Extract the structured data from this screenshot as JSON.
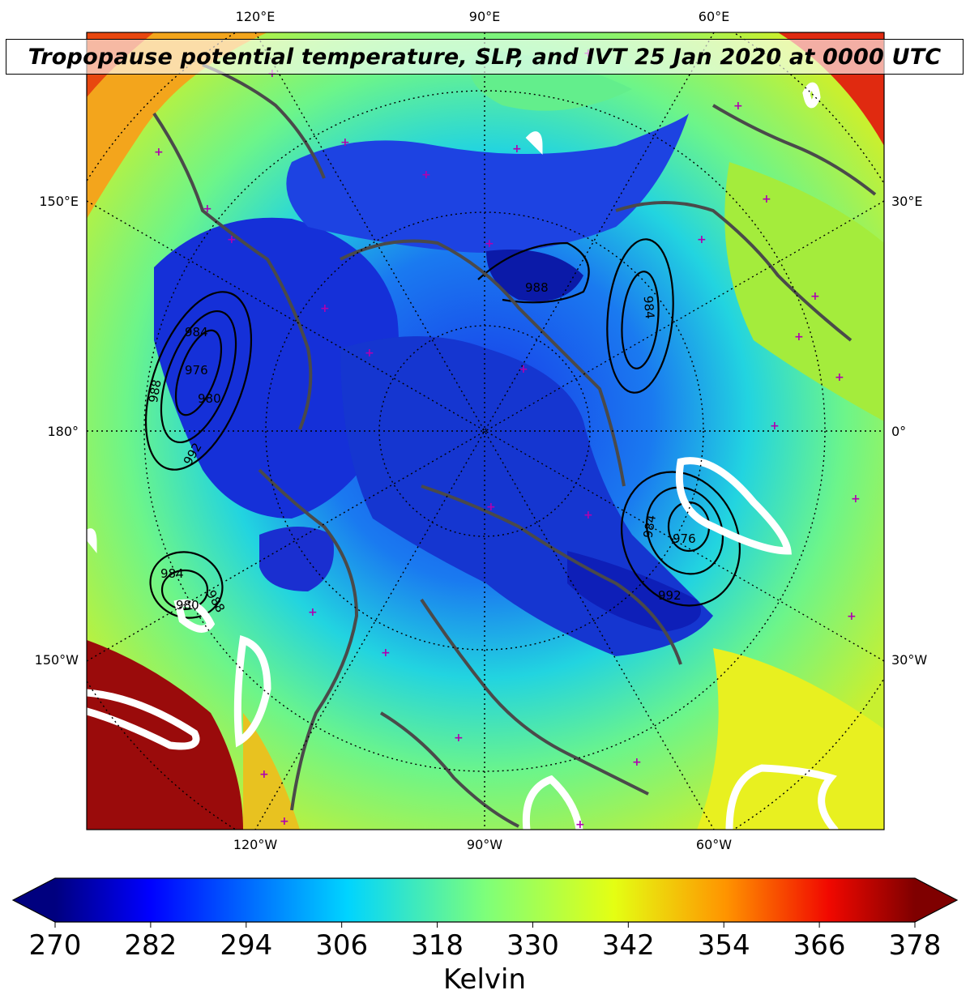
{
  "title": "Tropopause potential temperature, SLP, and IVT 25 Jan 2020 at 0000 UTC",
  "longitude_labels": {
    "top": [
      "120°E",
      "90°E",
      "60°E"
    ],
    "bottom": [
      "120°W",
      "90°W",
      "60°W"
    ],
    "left": [
      "150°E",
      "180°",
      "150°W"
    ],
    "right": [
      "30°E",
      "0°",
      "30°W"
    ]
  },
  "colorbar": {
    "label": "Kelvin",
    "min": 270,
    "max": 378,
    "ticks": [
      "270",
      "282",
      "294",
      "306",
      "318",
      "330",
      "342",
      "354",
      "366",
      "378"
    ],
    "extend": "both"
  },
  "isobar_labels": [
    "984",
    "976",
    "980",
    "988",
    "992",
    "984",
    "980",
    "988",
    "984",
    "976",
    "992",
    "988",
    "984"
  ],
  "colors": {
    "isobars": "#000000",
    "ivt_contour": "#ffffff",
    "coastlines": "#4a4a4a",
    "station_markers": "#b000b0",
    "gridlines": "#000000"
  },
  "colormap": "jet"
}
